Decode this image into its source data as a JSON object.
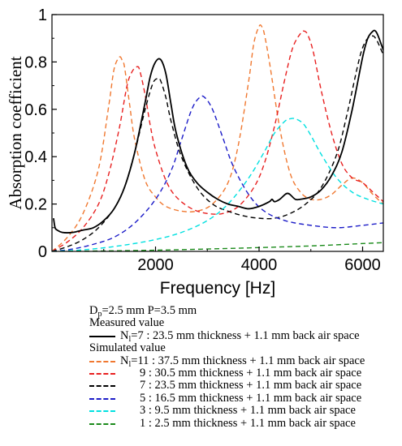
{
  "chart_data": {
    "type": "line",
    "title": "",
    "xlabel": "Frequency [Hz]",
    "ylabel": "Absorption coefficient",
    "xlim": [
      0,
      6400
    ],
    "ylim": [
      0,
      1
    ],
    "x_ticks": [
      2000,
      4000,
      6000
    ],
    "x_tick_labels": [
      "2000",
      "4000",
      "6000"
    ],
    "y_ticks": [
      0,
      0.2,
      0.4,
      0.6,
      0.8,
      1
    ],
    "y_tick_labels": [
      "0",
      "0.2",
      "0.4",
      "0.6",
      "0.8",
      "1"
    ],
    "grid": false,
    "legend_position": "bottom",
    "series": [
      {
        "label": "N_l=7 : 23.5 mm thickness + 1.1 mm back air space",
        "kind": "measured",
        "color": "#000000",
        "dash": "solid",
        "x": [
          30,
          60,
          100,
          200,
          400,
          600,
          800,
          1000,
          1200,
          1400,
          1600,
          1800,
          1900,
          2000,
          2100,
          2200,
          2300,
          2400,
          2600,
          2800,
          3000,
          3200,
          3400,
          3600,
          3800,
          4000,
          4200,
          4250,
          4300,
          4400,
          4500,
          4550,
          4600,
          4700,
          4800,
          5000,
          5200,
          5400,
          5600,
          5800,
          6000,
          6100,
          6200,
          6250,
          6300,
          6400
        ],
        "y": [
          0.14,
          0.1,
          0.09,
          0.08,
          0.08,
          0.09,
          0.1,
          0.13,
          0.18,
          0.27,
          0.42,
          0.63,
          0.74,
          0.8,
          0.81,
          0.75,
          0.62,
          0.5,
          0.36,
          0.29,
          0.25,
          0.22,
          0.2,
          0.19,
          0.18,
          0.19,
          0.21,
          0.22,
          0.21,
          0.22,
          0.24,
          0.245,
          0.24,
          0.22,
          0.22,
          0.23,
          0.26,
          0.32,
          0.42,
          0.6,
          0.82,
          0.9,
          0.93,
          0.93,
          0.91,
          0.85
        ]
      },
      {
        "label": "N_l=11 : 37.5 mm thickness + 1.1 mm back air space",
        "kind": "simulated",
        "color": "#f07830",
        "dash": "dashed",
        "x": [
          0,
          300,
          600,
          900,
          1100,
          1200,
          1300,
          1350,
          1400,
          1500,
          1600,
          1800,
          2000,
          2200,
          2500,
          2800,
          3100,
          3400,
          3600,
          3800,
          3900,
          4000,
          4050,
          4100,
          4200,
          4400,
          4600,
          4800,
          5000,
          5200,
          5400,
          5600,
          5800,
          6000,
          6200,
          6400
        ],
        "y": [
          0.0,
          0.06,
          0.16,
          0.35,
          0.62,
          0.77,
          0.82,
          0.81,
          0.78,
          0.62,
          0.47,
          0.3,
          0.23,
          0.19,
          0.17,
          0.17,
          0.2,
          0.29,
          0.45,
          0.72,
          0.88,
          0.95,
          0.95,
          0.92,
          0.8,
          0.52,
          0.33,
          0.25,
          0.22,
          0.22,
          0.24,
          0.28,
          0.31,
          0.29,
          0.24,
          0.2
        ]
      },
      {
        "label": "9 : 30.5 mm thickness + 1.1 mm back air space",
        "kind": "simulated",
        "color": "#e82020",
        "dash": "dashed",
        "x": [
          0,
          300,
          600,
          900,
          1100,
          1300,
          1450,
          1550,
          1650,
          1700,
          1800,
          1900,
          2000,
          2200,
          2400,
          2700,
          3000,
          3300,
          3600,
          3900,
          4100,
          4300,
          4500,
          4650,
          4800,
          4880,
          4950,
          5050,
          5200,
          5400,
          5600,
          5800,
          6000,
          6200,
          6400
        ],
        "y": [
          0.0,
          0.04,
          0.1,
          0.2,
          0.33,
          0.52,
          0.7,
          0.76,
          0.78,
          0.76,
          0.66,
          0.53,
          0.43,
          0.3,
          0.23,
          0.18,
          0.16,
          0.16,
          0.19,
          0.27,
          0.37,
          0.53,
          0.73,
          0.86,
          0.92,
          0.93,
          0.91,
          0.84,
          0.68,
          0.5,
          0.37,
          0.31,
          0.29,
          0.25,
          0.21
        ]
      },
      {
        "label": "7 : 23.5 mm thickness + 1.1 mm back air space",
        "kind": "simulated",
        "color": "#000000",
        "dash": "dashed",
        "x": [
          0,
          300,
          600,
          900,
          1200,
          1400,
          1600,
          1800,
          1950,
          2050,
          2100,
          2200,
          2300,
          2500,
          2800,
          3100,
          3400,
          3700,
          4000,
          4300,
          4600,
          4900,
          5200,
          5500,
          5700,
          5900,
          6000,
          6100,
          6200,
          6250,
          6300,
          6400
        ],
        "y": [
          0.0,
          0.02,
          0.05,
          0.1,
          0.18,
          0.27,
          0.42,
          0.6,
          0.71,
          0.73,
          0.72,
          0.65,
          0.55,
          0.4,
          0.27,
          0.2,
          0.17,
          0.15,
          0.14,
          0.14,
          0.16,
          0.2,
          0.27,
          0.41,
          0.58,
          0.78,
          0.86,
          0.9,
          0.91,
          0.9,
          0.88,
          0.83
        ]
      },
      {
        "label": "5 : 16.5 mm thickness + 1.1 mm back air space",
        "kind": "simulated",
        "color": "#1c1cc8",
        "dash": "dashed",
        "x": [
          0,
          400,
          800,
          1200,
          1600,
          2000,
          2300,
          2500,
          2700,
          2850,
          2950,
          3100,
          3300,
          3500,
          3800,
          4100,
          4500,
          5000,
          5500,
          6000,
          6400
        ],
        "y": [
          0.0,
          0.01,
          0.03,
          0.06,
          0.12,
          0.22,
          0.34,
          0.47,
          0.6,
          0.65,
          0.65,
          0.6,
          0.48,
          0.36,
          0.24,
          0.17,
          0.13,
          0.11,
          0.1,
          0.11,
          0.12
        ]
      },
      {
        "label": "3 : 9.5 mm thickness + 1.1 mm back air space",
        "kind": "simulated",
        "color": "#00e0e0",
        "dash": "dashed",
        "x": [
          0,
          500,
          1000,
          1500,
          2000,
          2500,
          3000,
          3400,
          3800,
          4100,
          4300,
          4500,
          4600,
          4700,
          4850,
          5000,
          5200,
          5500,
          5800,
          6100,
          6400
        ],
        "y": [
          0.0,
          0.005,
          0.015,
          0.03,
          0.05,
          0.08,
          0.13,
          0.2,
          0.31,
          0.42,
          0.5,
          0.55,
          0.56,
          0.56,
          0.54,
          0.49,
          0.41,
          0.31,
          0.25,
          0.22,
          0.2
        ]
      },
      {
        "label": "1 : 2.5 mm thickness + 1.1 mm back air space",
        "kind": "simulated",
        "color": "#1a8a1a",
        "dash": "dashed",
        "x": [
          0,
          1000,
          2000,
          3000,
          4000,
          5000,
          6000,
          6400
        ],
        "y": [
          0.0,
          0.002,
          0.005,
          0.01,
          0.016,
          0.023,
          0.033,
          0.037
        ]
      }
    ]
  },
  "legend": {
    "params_line": {
      "d": "D",
      "sub": "p",
      "rest": "=2.5 mm P=3.5 mm"
    },
    "measured_header": "Measured value",
    "measured_item": {
      "n": "N",
      "sub": "l",
      "rest": "=7 : 23.5 mm thickness + 1.1 mm back air space"
    },
    "simulated_header": "Simulated value",
    "simulated_items": [
      {
        "n": "N",
        "sub": "l",
        "rest": "=11 : 37.5 mm thickness + 1.1 mm back air space",
        "color": "#f07830"
      },
      {
        "n": "",
        "sub": "",
        "rest": "9 : 30.5 mm thickness + 1.1 mm back air space",
        "color": "#e82020"
      },
      {
        "n": "",
        "sub": "",
        "rest": "7 : 23.5 mm thickness + 1.1 mm back air space",
        "color": "#000000"
      },
      {
        "n": "",
        "sub": "",
        "rest": "5 : 16.5 mm thickness + 1.1 mm back air space",
        "color": "#1c1cc8"
      },
      {
        "n": "",
        "sub": "",
        "rest": "3 : 9.5 mm thickness + 1.1 mm back air space",
        "color": "#00e0e0"
      },
      {
        "n": "",
        "sub": "",
        "rest": "1 : 2.5 mm thickness + 1.1 mm back air space",
        "color": "#1a8a1a"
      }
    ]
  }
}
